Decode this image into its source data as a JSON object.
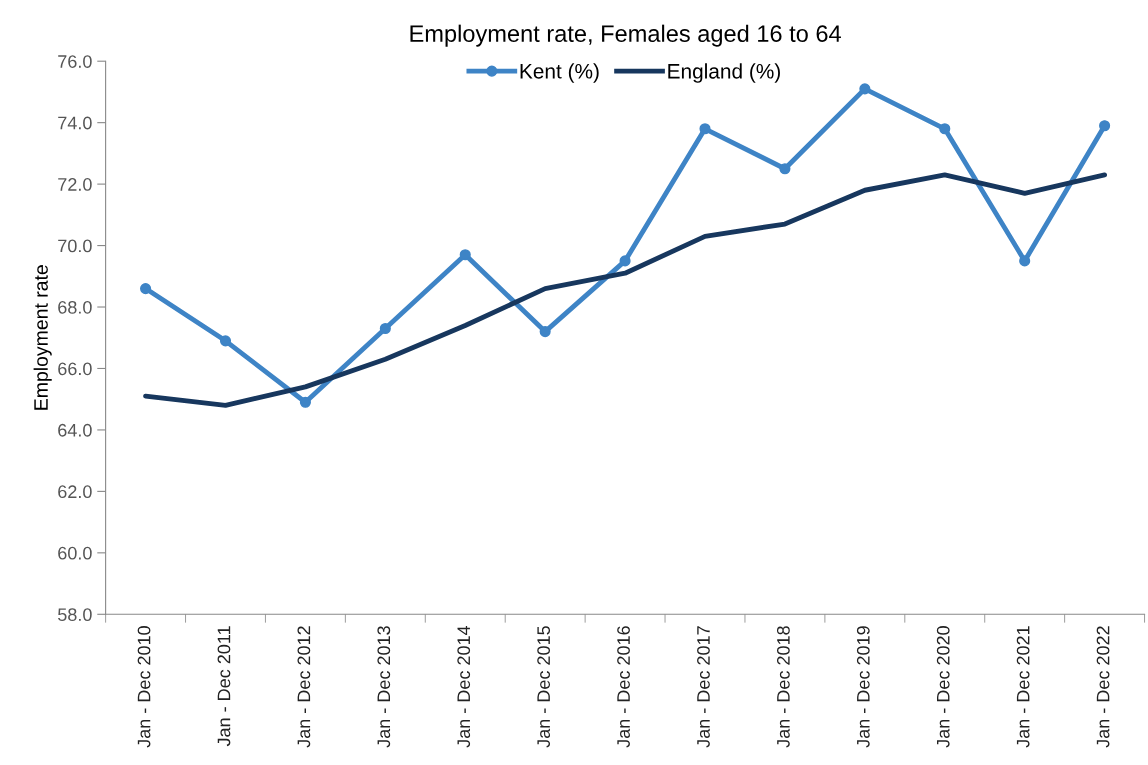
{
  "chart_data": {
    "type": "line",
    "title": "Employment rate, Females aged 16 to 64",
    "ylabel": "Employment rate",
    "categories": [
      "Jan - Dec 2010",
      "Jan - Dec 2011",
      "Jan - Dec 2012",
      "Jan - Dec 2013",
      "Jan - Dec 2014",
      "Jan - Dec 2015",
      "Jan - Dec 2016",
      "Jan - Dec 2017",
      "Jan - Dec 2018",
      "Jan - Dec 2019",
      "Jan - Dec 2020",
      "Jan - Dec 2021",
      "Jan - Dec 2022"
    ],
    "series": [
      {
        "name": "Kent (%)",
        "color": "#3e84c6",
        "marker": "circle",
        "values": [
          68.6,
          66.9,
          64.9,
          67.3,
          69.7,
          67.2,
          69.5,
          73.8,
          72.5,
          75.1,
          73.8,
          69.5,
          73.9
        ]
      },
      {
        "name": "England (%)",
        "color": "#17375e",
        "marker": "none",
        "values": [
          65.1,
          64.8,
          65.4,
          66.3,
          67.4,
          68.6,
          69.1,
          70.3,
          70.7,
          71.8,
          72.3,
          71.7,
          72.3
        ]
      }
    ],
    "ylim": [
      58,
      76
    ],
    "yticks": [
      {
        "value": 58,
        "label": "58.0"
      },
      {
        "value": 60,
        "label": "60.0"
      },
      {
        "value": 62,
        "label": "62.0"
      },
      {
        "value": 64,
        "label": "64.0"
      },
      {
        "value": 66,
        "label": "66.0"
      },
      {
        "value": 68,
        "label": "68.0"
      },
      {
        "value": 70,
        "label": "70.0"
      },
      {
        "value": 72,
        "label": "72.0"
      },
      {
        "value": 74,
        "label": "74.0"
      },
      {
        "value": 76,
        "label": "76.0"
      }
    ],
    "legend": "top",
    "grid": false,
    "line_style": "solid"
  }
}
